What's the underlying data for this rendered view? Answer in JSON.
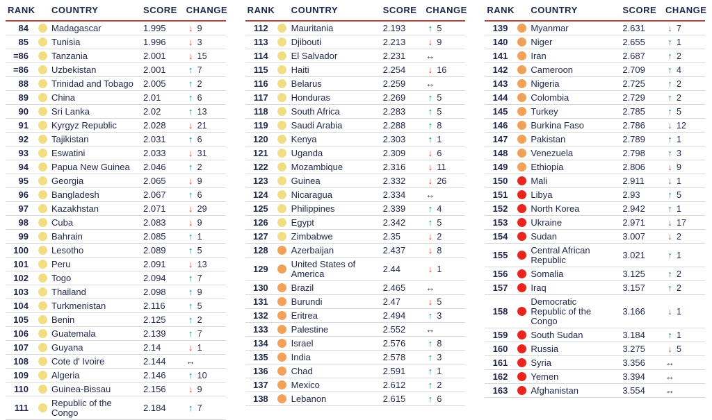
{
  "header": {
    "rank": "RANK",
    "country": "COUNTRY",
    "score": "SCORE",
    "change": "CHANGE"
  },
  "icons": {
    "up_arrow": "↑",
    "down_arrow": "↓",
    "same_arrow": "↔"
  },
  "colors": {
    "text": "#1f2649",
    "header_rule": "#b5423c",
    "row_rule": "#d9d9d9",
    "dot": {
      "yellow": "#f3dd84",
      "orange": "#f2a159",
      "red": "#e8251d"
    },
    "change": {
      "up": "#00897b",
      "down": "#e63329",
      "same": "#1f2649"
    }
  },
  "tables": [
    {
      "rows": [
        {
          "rank": "84",
          "country": "Madagascar",
          "score": "1.995",
          "band": "yellow",
          "dir": "down",
          "delta": "9"
        },
        {
          "rank": "85",
          "country": "Tunisia",
          "score": "1.996",
          "band": "yellow",
          "dir": "down",
          "delta": "3"
        },
        {
          "rank": "=86",
          "country": "Tanzania",
          "score": "2.001",
          "band": "yellow",
          "dir": "down",
          "delta": "15"
        },
        {
          "rank": "=86",
          "country": "Uzbekistan",
          "score": "2.001",
          "band": "yellow",
          "dir": "up",
          "delta": "7"
        },
        {
          "rank": "88",
          "country": "Trinidad and Tobago",
          "score": "2.005",
          "band": "yellow",
          "dir": "up",
          "delta": "2"
        },
        {
          "rank": "89",
          "country": "China",
          "score": "2.01",
          "band": "yellow",
          "dir": "up",
          "delta": "6"
        },
        {
          "rank": "90",
          "country": "Sri Lanka",
          "score": "2.02",
          "band": "yellow",
          "dir": "up",
          "delta": "13"
        },
        {
          "rank": "91",
          "country": "Kyrgyz Republic",
          "score": "2.028",
          "band": "yellow",
          "dir": "down",
          "delta": "21"
        },
        {
          "rank": "92",
          "country": "Tajikistan",
          "score": "2.031",
          "band": "yellow",
          "dir": "up",
          "delta": "6"
        },
        {
          "rank": "93",
          "country": "Eswatini",
          "score": "2.033",
          "band": "yellow",
          "dir": "down",
          "delta": "31"
        },
        {
          "rank": "94",
          "country": "Papua New Guinea",
          "score": "2.046",
          "band": "yellow",
          "dir": "up",
          "delta": "2"
        },
        {
          "rank": "95",
          "country": "Georgia",
          "score": "2.065",
          "band": "yellow",
          "dir": "down",
          "delta": "9"
        },
        {
          "rank": "96",
          "country": "Bangladesh",
          "score": "2.067",
          "band": "yellow",
          "dir": "up",
          "delta": "6"
        },
        {
          "rank": "97",
          "country": "Kazakhstan",
          "score": "2.071",
          "band": "yellow",
          "dir": "down",
          "delta": "29"
        },
        {
          "rank": "98",
          "country": "Cuba",
          "score": "2.083",
          "band": "yellow",
          "dir": "down",
          "delta": "9"
        },
        {
          "rank": "99",
          "country": "Bahrain",
          "score": "2.085",
          "band": "yellow",
          "dir": "up",
          "delta": "1"
        },
        {
          "rank": "100",
          "country": "Lesotho",
          "score": "2.089",
          "band": "yellow",
          "dir": "up",
          "delta": "5"
        },
        {
          "rank": "101",
          "country": "Peru",
          "score": "2.091",
          "band": "yellow",
          "dir": "down",
          "delta": "13"
        },
        {
          "rank": "102",
          "country": "Togo",
          "score": "2.094",
          "band": "yellow",
          "dir": "up",
          "delta": "7"
        },
        {
          "rank": "103",
          "country": "Thailand",
          "score": "2.098",
          "band": "yellow",
          "dir": "up",
          "delta": "9"
        },
        {
          "rank": "104",
          "country": "Turkmenistan",
          "score": "2.116",
          "band": "yellow",
          "dir": "up",
          "delta": "5"
        },
        {
          "rank": "105",
          "country": "Benin",
          "score": "2.125",
          "band": "yellow",
          "dir": "up",
          "delta": "2"
        },
        {
          "rank": "106",
          "country": "Guatemala",
          "score": "2.139",
          "band": "yellow",
          "dir": "up",
          "delta": "7"
        },
        {
          "rank": "107",
          "country": "Guyana",
          "score": "2.14",
          "band": "yellow",
          "dir": "down",
          "delta": "1"
        },
        {
          "rank": "108",
          "country": "Cote d' Ivoire",
          "score": "2.144",
          "band": "yellow",
          "dir": "same",
          "delta": ""
        },
        {
          "rank": "109",
          "country": "Algeria",
          "score": "2.146",
          "band": "yellow",
          "dir": "up",
          "delta": "10"
        },
        {
          "rank": "110",
          "country": "Guinea-Bissau",
          "score": "2.156",
          "band": "yellow",
          "dir": "down",
          "delta": "9"
        },
        {
          "rank": "111",
          "country": "Republic of the Congo",
          "score": "2.184",
          "band": "yellow",
          "dir": "up",
          "delta": "7"
        }
      ]
    },
    {
      "rows": [
        {
          "rank": "112",
          "country": "Mauritania",
          "score": "2.193",
          "band": "yellow",
          "dir": "up",
          "delta": "5"
        },
        {
          "rank": "113",
          "country": "Djibouti",
          "score": "2.213",
          "band": "yellow",
          "dir": "down",
          "delta": "9"
        },
        {
          "rank": "114",
          "country": "El Salvador",
          "score": "2.231",
          "band": "yellow",
          "dir": "same",
          "delta": ""
        },
        {
          "rank": "115",
          "country": "Haiti",
          "score": "2.254",
          "band": "yellow",
          "dir": "down",
          "delta": "16"
        },
        {
          "rank": "116",
          "country": "Belarus",
          "score": "2.259",
          "band": "yellow",
          "dir": "same",
          "delta": ""
        },
        {
          "rank": "117",
          "country": "Honduras",
          "score": "2.269",
          "band": "yellow",
          "dir": "up",
          "delta": "5"
        },
        {
          "rank": "118",
          "country": "South Africa",
          "score": "2.283",
          "band": "yellow",
          "dir": "up",
          "delta": "5"
        },
        {
          "rank": "119",
          "country": "Saudi Arabia",
          "score": "2.288",
          "band": "yellow",
          "dir": "up",
          "delta": "8"
        },
        {
          "rank": "120",
          "country": "Kenya",
          "score": "2.303",
          "band": "yellow",
          "dir": "up",
          "delta": "1"
        },
        {
          "rank": "121",
          "country": "Uganda",
          "score": "2.309",
          "band": "yellow",
          "dir": "down",
          "delta": "6"
        },
        {
          "rank": "122",
          "country": "Mozambique",
          "score": "2.316",
          "band": "yellow",
          "dir": "down",
          "delta": "11"
        },
        {
          "rank": "123",
          "country": "Guinea",
          "score": "2.332",
          "band": "yellow",
          "dir": "down",
          "delta": "26"
        },
        {
          "rank": "124",
          "country": "Nicaragua",
          "score": "2.334",
          "band": "yellow",
          "dir": "same",
          "delta": ""
        },
        {
          "rank": "125",
          "country": "Philippines",
          "score": "2.339",
          "band": "yellow",
          "dir": "up",
          "delta": "4"
        },
        {
          "rank": "126",
          "country": "Egypt",
          "score": "2.342",
          "band": "yellow",
          "dir": "up",
          "delta": "5"
        },
        {
          "rank": "127",
          "country": "Zimbabwe",
          "score": "2.35",
          "band": "yellow",
          "dir": "down",
          "delta": "2"
        },
        {
          "rank": "128",
          "country": "Azerbaijan",
          "score": "2.437",
          "band": "orange",
          "dir": "down",
          "delta": "8"
        },
        {
          "rank": "129",
          "country": "United States of America",
          "score": "2.44",
          "band": "orange",
          "dir": "down",
          "delta": "1"
        },
        {
          "rank": "130",
          "country": "Brazil",
          "score": "2.465",
          "band": "orange",
          "dir": "same",
          "delta": ""
        },
        {
          "rank": "131",
          "country": "Burundi",
          "score": "2.47",
          "band": "orange",
          "dir": "down",
          "delta": "5"
        },
        {
          "rank": "132",
          "country": "Eritrea",
          "score": "2.494",
          "band": "orange",
          "dir": "up",
          "delta": "3"
        },
        {
          "rank": "133",
          "country": "Palestine",
          "score": "2.552",
          "band": "orange",
          "dir": "same",
          "delta": ""
        },
        {
          "rank": "134",
          "country": "Israel",
          "score": "2.576",
          "band": "orange",
          "dir": "up",
          "delta": "8"
        },
        {
          "rank": "135",
          "country": "India",
          "score": "2.578",
          "band": "orange",
          "dir": "up",
          "delta": "3"
        },
        {
          "rank": "136",
          "country": "Chad",
          "score": "2.591",
          "band": "orange",
          "dir": "up",
          "delta": "1"
        },
        {
          "rank": "137",
          "country": "Mexico",
          "score": "2.612",
          "band": "orange",
          "dir": "up",
          "delta": "2"
        },
        {
          "rank": "138",
          "country": "Lebanon",
          "score": "2.615",
          "band": "orange",
          "dir": "up",
          "delta": "6"
        }
      ]
    },
    {
      "rows": [
        {
          "rank": "139",
          "country": "Myanmar",
          "score": "2.631",
          "band": "orange",
          "dir": "down",
          "delta": "7"
        },
        {
          "rank": "140",
          "country": "Niger",
          "score": "2.655",
          "band": "orange",
          "dir": "up",
          "delta": "1"
        },
        {
          "rank": "141",
          "country": "Iran",
          "score": "2.687",
          "band": "orange",
          "dir": "up",
          "delta": "2"
        },
        {
          "rank": "142",
          "country": "Cameroon",
          "score": "2.709",
          "band": "orange",
          "dir": "up",
          "delta": "4"
        },
        {
          "rank": "143",
          "country": "Nigeria",
          "score": "2.725",
          "band": "orange",
          "dir": "up",
          "delta": "2"
        },
        {
          "rank": "144",
          "country": "Colombia",
          "score": "2.729",
          "band": "orange",
          "dir": "up",
          "delta": "2"
        },
        {
          "rank": "145",
          "country": "Turkey",
          "score": "2.785",
          "band": "orange",
          "dir": "up",
          "delta": "5"
        },
        {
          "rank": "146",
          "country": "Burkina Faso",
          "score": "2.786",
          "band": "orange",
          "dir": "down",
          "delta": "12"
        },
        {
          "rank": "147",
          "country": "Pakistan",
          "score": "2.789",
          "band": "orange",
          "dir": "up",
          "delta": "1"
        },
        {
          "rank": "148",
          "country": "Venezuela",
          "score": "2.798",
          "band": "orange",
          "dir": "up",
          "delta": "3"
        },
        {
          "rank": "149",
          "country": "Ethiopia",
          "score": "2.806",
          "band": "orange",
          "dir": "down",
          "delta": "9"
        },
        {
          "rank": "150",
          "country": "Mali",
          "score": "2.911",
          "band": "red",
          "dir": "down",
          "delta": "1"
        },
        {
          "rank": "151",
          "country": "Libya",
          "score": "2.93",
          "band": "red",
          "dir": "up",
          "delta": "5"
        },
        {
          "rank": "152",
          "country": "North Korea",
          "score": "2.942",
          "band": "red",
          "dir": "up",
          "delta": "1"
        },
        {
          "rank": "153",
          "country": "Ukraine",
          "score": "2.971",
          "band": "red",
          "dir": "down",
          "delta": "17"
        },
        {
          "rank": "154",
          "country": "Sudan",
          "score": "3.007",
          "band": "red",
          "dir": "down",
          "delta": "2"
        },
        {
          "rank": "155",
          "country": "Central African Republic",
          "score": "3.021",
          "band": "red",
          "dir": "up",
          "delta": "1"
        },
        {
          "rank": "156",
          "country": "Somalia",
          "score": "3.125",
          "band": "red",
          "dir": "up",
          "delta": "2"
        },
        {
          "rank": "157",
          "country": "Iraq",
          "score": "3.157",
          "band": "red",
          "dir": "up",
          "delta": "2"
        },
        {
          "rank": "158",
          "country": "Democratic Republic of the Congo",
          "score": "3.166",
          "band": "red",
          "dir": "down",
          "delta": "1"
        },
        {
          "rank": "159",
          "country": "South Sudan",
          "score": "3.184",
          "band": "red",
          "dir": "up",
          "delta": "1"
        },
        {
          "rank": "160",
          "country": "Russia",
          "score": "3.275",
          "band": "red",
          "dir": "down",
          "delta": "5"
        },
        {
          "rank": "161",
          "country": "Syria",
          "score": "3.356",
          "band": "red",
          "dir": "same",
          "delta": ""
        },
        {
          "rank": "162",
          "country": "Yemen",
          "score": "3.394",
          "band": "red",
          "dir": "same",
          "delta": ""
        },
        {
          "rank": "163",
          "country": "Afghanistan",
          "score": "3.554",
          "band": "red",
          "dir": "same",
          "delta": ""
        }
      ]
    }
  ]
}
